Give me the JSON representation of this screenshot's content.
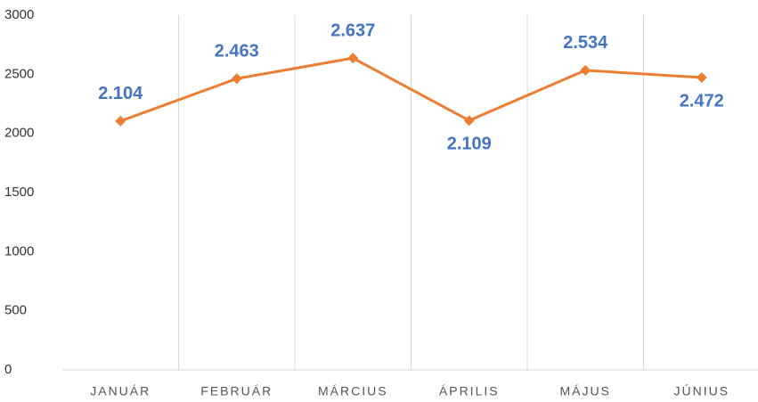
{
  "chart_data": {
    "type": "line",
    "categories": [
      "JANUÁR",
      "FEBRUÁR",
      "MÁRCIUS",
      "ÁPRILIS",
      "MÁJUS",
      "JÚNIUS"
    ],
    "series": [
      {
        "color": "#ED7D31",
        "values": [
          2104,
          2463,
          2637,
          2109,
          2534,
          2472
        ],
        "value_labels": [
          "2.104",
          "2.463",
          "2.637",
          "2.109",
          "2.534",
          "2.472"
        ],
        "label_color": "#4472C4"
      }
    ],
    "ylim": [
      0,
      3000
    ],
    "yticks": [
      0,
      500,
      1000,
      1500,
      2000,
      2500,
      3000
    ],
    "grid": false
  }
}
